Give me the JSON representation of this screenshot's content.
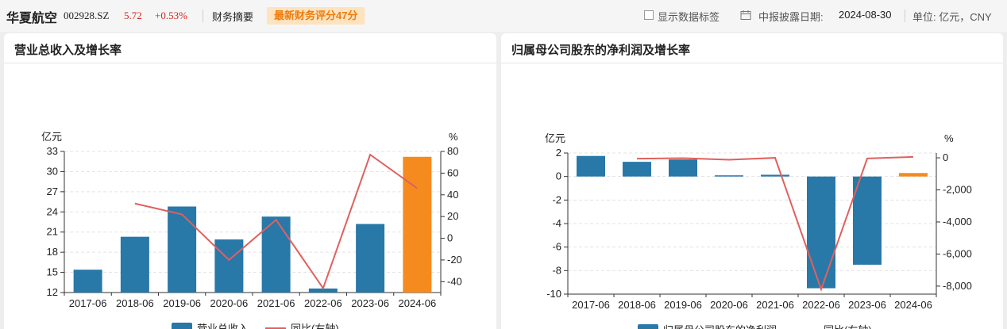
{
  "header": {
    "stock_name": "华夏航空",
    "stock_code": "002928.SZ",
    "price": "5.72",
    "change": "+0.53%",
    "tab_label": "财务摘要",
    "score_badge": "最新财务评分47分",
    "show_labels_text": "显示数据标签",
    "date_label": "中报披露日期:",
    "date_value": "2024-08-30",
    "unit_text": "单位: 亿元，CNY"
  },
  "colors": {
    "bar": "#2878a8",
    "bar_latest": "#f58b1f",
    "line": "#e0605e",
    "price": "#d82020",
    "badge_bg": "#ffe3bf",
    "badge_text": "#f07b0a"
  },
  "chart_data": [
    {
      "type": "bar",
      "title": "营业总收入及增长率",
      "categories": [
        "2017-06",
        "2018-06",
        "2019-06",
        "2020-06",
        "2021-06",
        "2022-06",
        "2023-06",
        "2024-06"
      ],
      "series": [
        {
          "name": "营业总收入",
          "axis": "left",
          "values": [
            15.4,
            20.3,
            24.8,
            19.9,
            23.3,
            12.6,
            22.2,
            32.2
          ]
        },
        {
          "name": "同比(右轴)",
          "axis": "right",
          "type": "line",
          "values": [
            null,
            32,
            22,
            -20,
            17,
            -46,
            77,
            46
          ]
        }
      ],
      "ylabel_left": "亿元",
      "ylabel_right": "%",
      "ylim_left": [
        12,
        33
      ],
      "yticks_left": [
        12,
        15,
        18,
        21,
        24,
        27,
        30,
        33
      ],
      "ylim_right": [
        -50,
        80
      ],
      "yticks_right": [
        -40,
        -20,
        0,
        20,
        40,
        60,
        80
      ],
      "legend": "bottom",
      "grid": true
    },
    {
      "type": "bar",
      "title": "归属母公司股东的净利润及增长率",
      "categories": [
        "2017-06",
        "2018-06",
        "2019-06",
        "2020-06",
        "2021-06",
        "2022-06",
        "2023-06",
        "2024-06"
      ],
      "series": [
        {
          "name": "归属母公司股东的净利润",
          "axis": "left",
          "values": [
            1.75,
            1.25,
            1.45,
            0.1,
            0.15,
            -9.5,
            -7.5,
            0.3
          ]
        },
        {
          "name": "同比(右轴)",
          "axis": "right",
          "type": "line",
          "values": [
            null,
            -50,
            -20,
            -120,
            0,
            -8200,
            -40,
            60
          ]
        }
      ],
      "ylabel_left": "亿元",
      "ylabel_right": "%",
      "ylim_left": [
        -10,
        2
      ],
      "yticks_left": [
        -10,
        -8,
        -6,
        -4,
        -2,
        0,
        2
      ],
      "ylim_right": [
        -8500,
        300
      ],
      "yticks_right": [
        -8000,
        -6000,
        -4000,
        -2000,
        0
      ],
      "ytick_labels_right": [
        "-8,000",
        "-6,000",
        "-4,000",
        "-2,000",
        "0"
      ],
      "legend": "bottom",
      "grid": true
    }
  ]
}
